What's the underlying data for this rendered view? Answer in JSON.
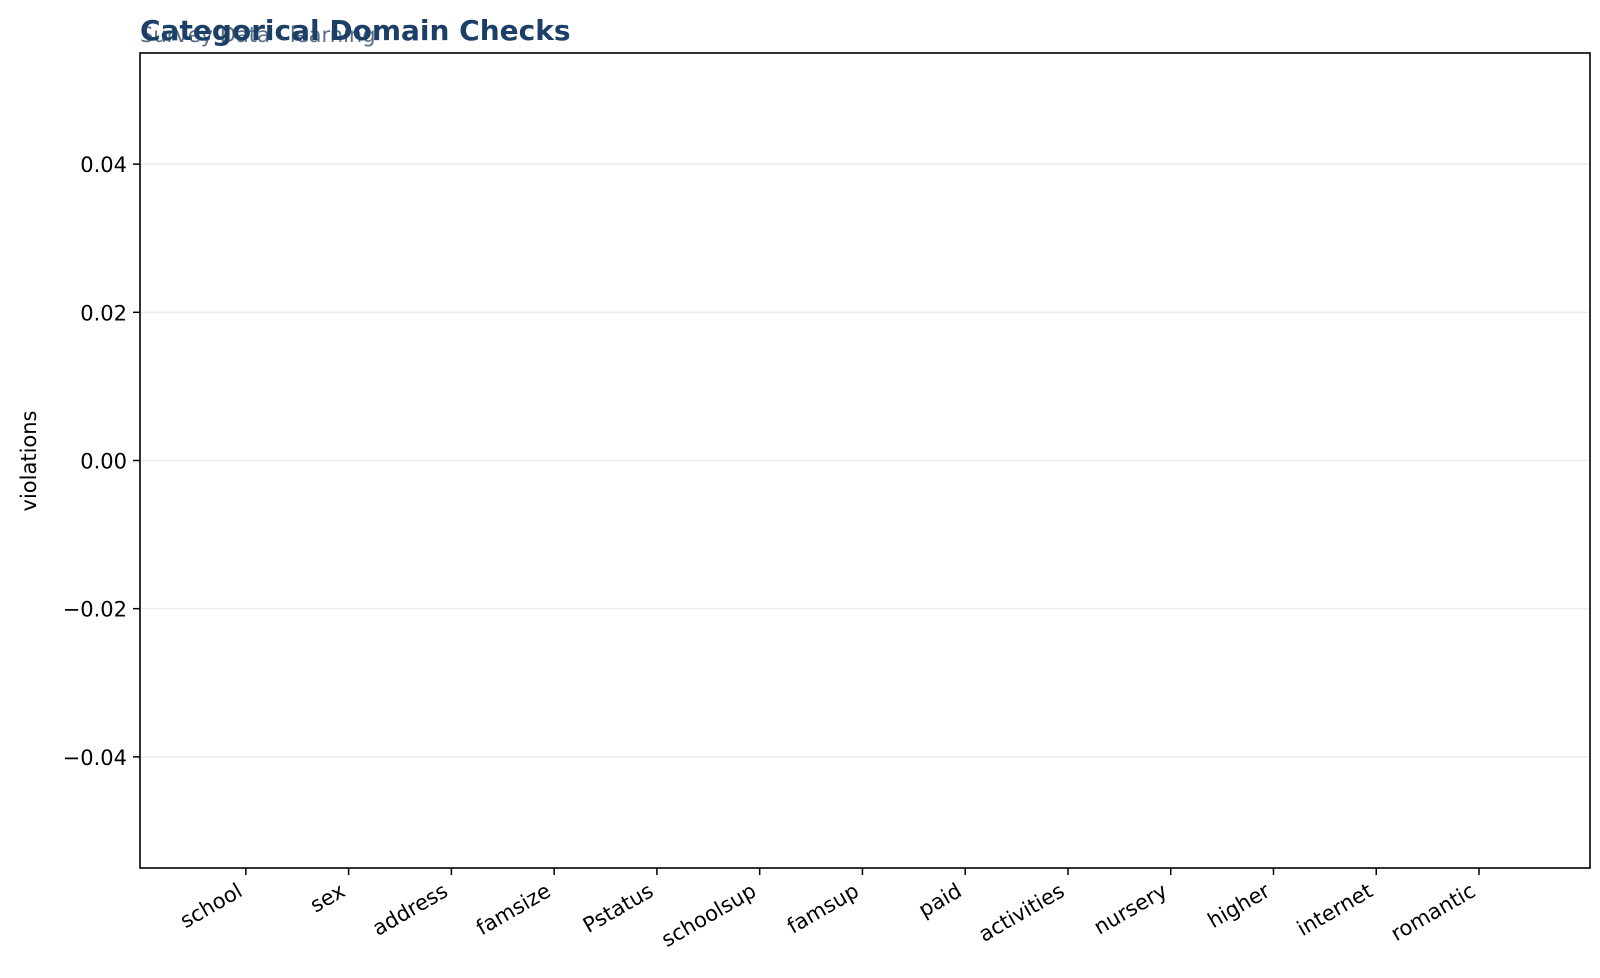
{
  "chart_data": {
    "type": "bar",
    "title": "Categorical Domain Checks",
    "subtitle": "Survey Data · learning",
    "xlabel": "",
    "ylabel": "violations",
    "categories": [
      "school",
      "sex",
      "address",
      "famsize",
      "Pstatus",
      "schoolsup",
      "famsup",
      "paid",
      "activities",
      "nursery",
      "higher",
      "internet",
      "romantic"
    ],
    "values": [
      0,
      0,
      0,
      0,
      0,
      0,
      0,
      0,
      0,
      0,
      0,
      0,
      0
    ],
    "ylim": [
      -0.055,
      0.055
    ],
    "yticks": [
      -0.04,
      -0.02,
      0.0,
      0.02,
      0.04
    ],
    "ytick_labels": [
      "−0.04",
      "−0.02",
      "0.00",
      "0.02",
      "0.04"
    ],
    "grid": "horizontal",
    "legend": "none",
    "colors": {
      "title": "#1b3f66",
      "subtitle": "#5a6f86",
      "bar": "#2f6fa8",
      "grid": "#ebebeb",
      "axis": "#000000"
    }
  }
}
